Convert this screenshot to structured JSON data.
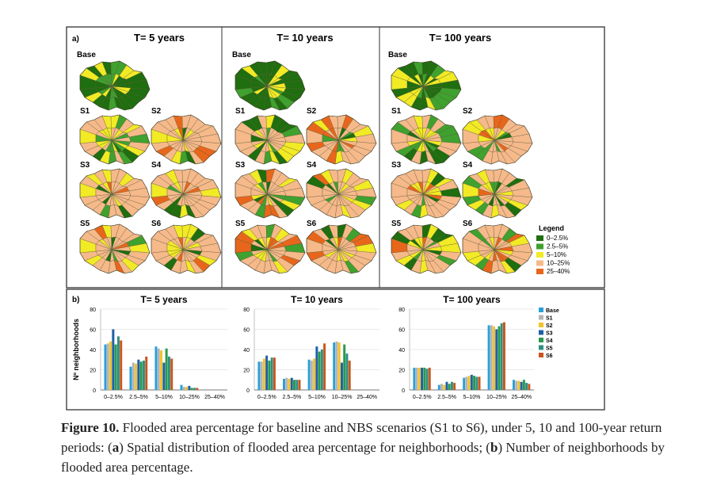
{
  "panel_a": {
    "label": "a)",
    "periods": [
      "T= 5 years",
      "T= 10 years",
      "T= 100 years"
    ],
    "scenarios": [
      "Base",
      "S1",
      "S2",
      "S3",
      "S4",
      "S5",
      "S6"
    ],
    "legend": {
      "title": "Legend",
      "items": [
        {
          "label": "0–2.5%",
          "color": "#1f6e0f"
        },
        {
          "label": "2.5–5%",
          "color": "#3fa12e"
        },
        {
          "label": "5–10%",
          "color": "#f2ea25"
        },
        {
          "label": "10–25%",
          "color": "#f6b98a"
        },
        {
          "label": "25–40%",
          "color": "#e8661b"
        }
      ]
    }
  },
  "panel_b": {
    "label": "b)",
    "ylabel": "Nº neighborhoods",
    "series_colors": {
      "Base": "#2b9fd8",
      "S1": "#b4b4b4",
      "S2": "#f3c22a",
      "S3": "#1f5faa",
      "S4": "#2a9a4a",
      "S5": "#2f8f83",
      "S6": "#c8561c"
    }
  },
  "chart_data": [
    {
      "type": "bar",
      "title": "T= 5 years",
      "ylabel": "Nº neighborhoods",
      "ylim": [
        0,
        80
      ],
      "yticks": [
        0,
        20,
        40,
        60,
        80
      ],
      "categories": [
        "0–2.5%",
        "2.5–5%",
        "5–10%",
        "10–25%",
        "25–40%"
      ],
      "series": [
        {
          "name": "Base",
          "values": [
            45,
            23,
            43,
            5,
            0
          ]
        },
        {
          "name": "S1",
          "values": [
            46,
            27,
            41,
            3,
            0
          ]
        },
        {
          "name": "S2",
          "values": [
            48,
            26,
            39,
            3,
            0
          ]
        },
        {
          "name": "S3",
          "values": [
            60,
            30,
            27,
            4,
            0
          ]
        },
        {
          "name": "S4",
          "values": [
            45,
            28,
            41,
            2,
            0
          ]
        },
        {
          "name": "S5",
          "values": [
            53,
            29,
            33,
            2,
            0
          ]
        },
        {
          "name": "S6",
          "values": [
            49,
            33,
            31,
            2,
            0
          ]
        }
      ]
    },
    {
      "type": "bar",
      "title": "T= 10 years",
      "ylim": [
        0,
        80
      ],
      "yticks": [
        0,
        20,
        40,
        60,
        80
      ],
      "categories": [
        "0–2.5%",
        "2.5–5%",
        "5–10%",
        "10–25%",
        "25–40%"
      ],
      "series": [
        {
          "name": "Base",
          "values": [
            28,
            11,
            30,
            47,
            0
          ]
        },
        {
          "name": "S1",
          "values": [
            28,
            12,
            29,
            48,
            0
          ]
        },
        {
          "name": "S2",
          "values": [
            31,
            11,
            31,
            47,
            0
          ]
        },
        {
          "name": "S3",
          "values": [
            34,
            12,
            43,
            27,
            0
          ]
        },
        {
          "name": "S4",
          "values": [
            29,
            10,
            38,
            45,
            0
          ]
        },
        {
          "name": "S5",
          "values": [
            32,
            10,
            40,
            36,
            0
          ]
        },
        {
          "name": "S6",
          "values": [
            32,
            10,
            46,
            29,
            0
          ]
        }
      ]
    },
    {
      "type": "bar",
      "title": "T= 100 years",
      "ylim": [
        0,
        80
      ],
      "yticks": [
        0,
        20,
        40,
        60,
        80
      ],
      "categories": [
        "0–2.5%",
        "2.5–5%",
        "5–10%",
        "10–25%",
        "25–40%"
      ],
      "legend": "top-right",
      "series": [
        {
          "name": "Base",
          "values": [
            22,
            5,
            12,
            64,
            10
          ]
        },
        {
          "name": "S1",
          "values": [
            22,
            6,
            13,
            64,
            9
          ]
        },
        {
          "name": "S2",
          "values": [
            22,
            5,
            14,
            63,
            9
          ]
        },
        {
          "name": "S3",
          "values": [
            22,
            8,
            15,
            60,
            8
          ]
        },
        {
          "name": "S4",
          "values": [
            22,
            6,
            14,
            63,
            10
          ]
        },
        {
          "name": "S5",
          "values": [
            21,
            8,
            13,
            66,
            7
          ]
        },
        {
          "name": "S6",
          "values": [
            22,
            7,
            13,
            67,
            6
          ]
        }
      ]
    }
  ],
  "caption": {
    "label": "Figure 10.",
    "part1": " Flooded area percentage for baseline and NBS scenarios (S1 to S6), under 5, 10 and 100-year return periods: (",
    "a": "a",
    "part2": ") Spatial distribution of flooded area percentage for neighborhoods; (",
    "b": "b",
    "part3": ") Number of neighborhoods by flooded area percentage."
  }
}
